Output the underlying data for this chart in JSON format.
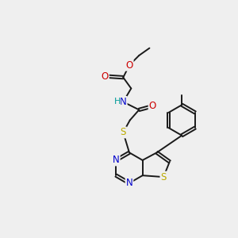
{
  "bg_color": "#efefef",
  "bond_color": "#1a1a1a",
  "atom_colors": {
    "O": "#cc0000",
    "N": "#0000cc",
    "S": "#bbaa00",
    "H": "#009999",
    "C": "#1a1a1a"
  },
  "figsize": [
    3.0,
    3.0
  ],
  "dpi": 100
}
